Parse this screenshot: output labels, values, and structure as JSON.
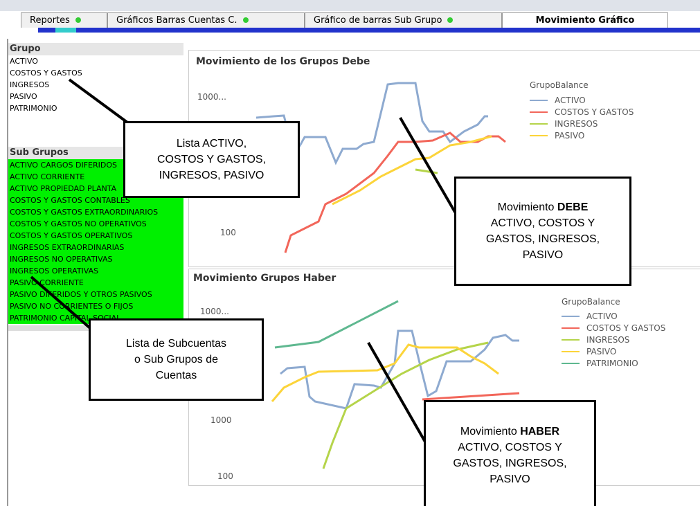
{
  "tabs": [
    "Reportes",
    "Gráficos Barras Cuentas C.",
    "Gráfico de barras Sub Grupo",
    "Movimiento Gráfico"
  ],
  "grupo": {
    "title": "Grupo",
    "items": [
      "ACTIVO",
      "COSTOS Y GASTOS",
      "INGRESOS",
      "PASIVO",
      "PATRIMONIO"
    ]
  },
  "sub_grupos": {
    "title": "Sub Grupos",
    "items": [
      "ACTIVO CARGOS DIFERIDOS",
      "ACTIVO CORRIENTE",
      "ACTIVO PROPIEDAD PLANTA",
      "COSTOS Y GASTOS CONTABLES",
      "COSTOS Y GASTOS EXTRAORDINARIOS",
      "COSTOS Y GASTOS NO OPERATIVOS",
      "COSTOS Y GASTOS OPERATIVOS",
      "INGRESOS EXTRAORDINARIAS",
      "INGRESOS NO OPERATIVAS",
      "INGRESOS OPERATIVAS",
      "PASIVO CORRIENTE",
      "PASIVO DIFERIDOS Y OTROS PASIVOS",
      "PASIVO NO CORRIENTES O FIJOS",
      "PATRIMONIO CAPITAL SOCIAL"
    ]
  },
  "charts": [
    {
      "title": "Movimiento de los Grupos  Debe",
      "ticks": [
        "1000...",
        "100"
      ],
      "legend_title": "GrupoBalance",
      "legend": [
        {
          "name": "ACTIVO",
          "color": "#8eaad0"
        },
        {
          "name": "COSTOS Y GASTOS",
          "color": "#f2665a"
        },
        {
          "name": "INGRESOS",
          "color": "#b5d44a"
        },
        {
          "name": "PASIVO",
          "color": "#fcd43a"
        }
      ]
    },
    {
      "title": "Movimiento Grupos  Haber",
      "ticks": [
        "1000...",
        "1000",
        "100"
      ],
      "legend_title": "GrupoBalance",
      "legend": [
        {
          "name": "ACTIVO",
          "color": "#8eaad0"
        },
        {
          "name": "COSTOS Y GASTOS",
          "color": "#f2665a"
        },
        {
          "name": "INGRESOS",
          "color": "#b5d44a"
        },
        {
          "name": "PASIVO",
          "color": "#fcd43a"
        },
        {
          "name": "PATRIMONIO",
          "color": "#5fb890"
        }
      ]
    }
  ],
  "annotations": [
    {
      "lines": [
        "Lista ACTIVO,",
        "COSTOS Y GASTOS,",
        "INGRESOS, PASIVO"
      ]
    },
    {
      "lead": "Movimiento",
      "emphasis": "DEBE",
      "lines": [
        "ACTIVO, COSTOS Y",
        "GASTOS,  INGRESOS,",
        "PASIVO"
      ]
    },
    {
      "lines": [
        "Lista de Subcuentas",
        "o Sub Grupos de",
        "Cuentas"
      ]
    },
    {
      "lead": "Movimiento",
      "emphasis": "HABER",
      "lines": [
        "ACTIVO, COSTOS Y",
        "GASTOS,  INGRESOS,",
        "PASIVO"
      ]
    }
  ]
}
